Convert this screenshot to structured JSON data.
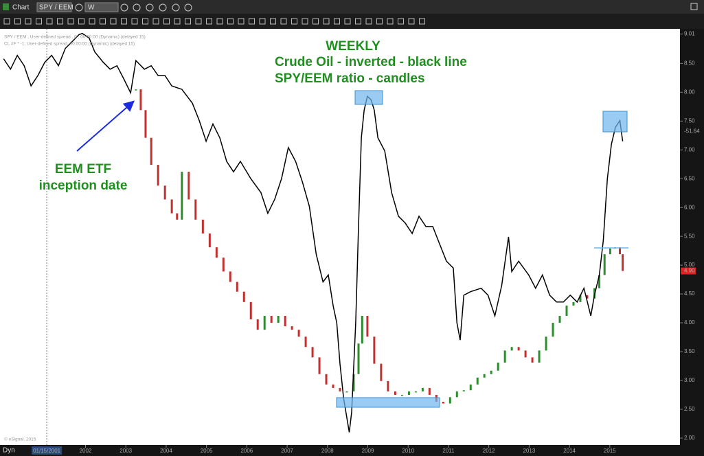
{
  "window_title": "Chart",
  "symbol": "SPY / EEM",
  "interval": "W",
  "status": "Dyn",
  "copyright": "© eSignal, 2015",
  "chart_data": {
    "type": "line",
    "annotations": [
      "WEEKLY",
      "Crude Oil - inverted - black line",
      "SPY/EEM ratio - candles",
      "EEM ETF",
      "inception date"
    ],
    "xlim": [
      1999.88,
      2016.74
    ],
    "xticks": [
      2002,
      2003,
      2004,
      2005,
      2006,
      2007,
      2008,
      2009,
      2010,
      2011,
      2012,
      2013,
      2014,
      2015
    ],
    "cursor": {
      "value": 2001.04,
      "label": "01/15/2001"
    },
    "ylim": [
      1.88,
      9.1
    ],
    "yticks": [
      {
        "value": 2,
        "label": "2.00"
      },
      {
        "value": 2.5,
        "label": "2.50"
      },
      {
        "value": 3,
        "label": "3.00"
      },
      {
        "value": 3.5,
        "label": "3.50"
      },
      {
        "value": 4,
        "label": "4.00"
      },
      {
        "value": 4.5,
        "label": "4.50"
      },
      {
        "value": 5,
        "label": "5.00"
      },
      {
        "value": 5.5,
        "label": "5.50"
      },
      {
        "value": 6,
        "label": "6.00"
      },
      {
        "value": 6.5,
        "label": "6.50"
      },
      {
        "value": 7,
        "label": "7.00"
      },
      {
        "value": 7.5,
        "label": "7.50"
      },
      {
        "value": 8,
        "label": "8.00"
      },
      {
        "value": 8.5,
        "label": "8.50"
      },
      {
        "value": 9.01,
        "label": "9.01"
      }
    ],
    "price_markers": [
      {
        "value": 7.32,
        "label": "-51.64",
        "color": "#ffffff"
      },
      {
        "value": 4.9,
        "label": "4.90",
        "color": "#d22"
      }
    ],
    "series": [
      {
        "name": "CL #F * -1, User-defined spread, 00:00:00 (Dynamic) (delayed 15)",
        "color": "#000000",
        "style": "line",
        "x": [
          1999.97,
          2000.14,
          2000.31,
          2000.48,
          2000.65,
          2000.82,
          2000.99,
          2001.16,
          2001.33,
          2001.5,
          2001.67,
          2001.84,
          2001.92,
          2002.09,
          2002.23,
          2002.44,
          2002.61,
          2002.78,
          2002.95,
          2003.12,
          2003.25,
          2003.46,
          2003.63,
          2003.8,
          2003.97,
          2004.14,
          2004.39,
          2004.65,
          2004.82,
          2004.99,
          2005.16,
          2005.33,
          2005.5,
          2005.67,
          2005.84,
          2006.1,
          2006.35,
          2006.52,
          2006.69,
          2006.86,
          2007.03,
          2007.21,
          2007.38,
          2007.55,
          2007.72,
          2007.89,
          2008.02,
          2008.14,
          2008.23,
          2008.31,
          2008.4,
          2008.54,
          2008.6,
          2008.7,
          2008.77,
          2008.84,
          2008.91,
          2008.99,
          2009.08,
          2009.16,
          2009.25,
          2009.42,
          2009.59,
          2009.76,
          2009.93,
          2010.1,
          2010.27,
          2010.44,
          2010.61,
          2010.78,
          2010.95,
          2011.12,
          2011.21,
          2011.29,
          2011.38,
          2011.55,
          2011.81,
          2011.98,
          2012.15,
          2012.32,
          2012.49,
          2012.57,
          2012.74,
          2012.99,
          2013.16,
          2013.33,
          2013.51,
          2013.68,
          2013.85,
          2014.02,
          2014.19,
          2014.36,
          2014.53,
          2014.62,
          2014.74,
          2014.84,
          2014.94,
          2015.04,
          2015.14,
          2015.25,
          2015.32
        ],
        "values": [
          8.58,
          8.4,
          8.64,
          8.46,
          8.11,
          8.29,
          8.52,
          8.64,
          8.46,
          8.76,
          8.88,
          9.0,
          9.02,
          8.94,
          8.7,
          8.52,
          8.4,
          8.46,
          8.23,
          7.99,
          8.55,
          8.4,
          8.46,
          8.29,
          8.29,
          8.11,
          8.05,
          7.81,
          7.51,
          7.15,
          7.45,
          7.21,
          6.8,
          6.62,
          6.8,
          6.5,
          6.26,
          5.9,
          6.14,
          6.5,
          7.04,
          6.8,
          6.44,
          6.02,
          5.19,
          4.71,
          4.83,
          4.3,
          4.0,
          3.29,
          2.69,
          2.1,
          2.45,
          4.0,
          5.67,
          7.21,
          7.69,
          7.93,
          7.87,
          7.69,
          7.21,
          6.98,
          6.26,
          5.85,
          5.73,
          5.55,
          5.85,
          5.67,
          5.67,
          5.37,
          5.07,
          4.95,
          4.0,
          3.7,
          4.48,
          4.54,
          4.6,
          4.48,
          4.12,
          4.65,
          5.49,
          4.89,
          5.07,
          4.83,
          4.6,
          4.83,
          4.48,
          4.36,
          4.36,
          4.48,
          4.36,
          4.6,
          4.12,
          4.48,
          4.83,
          5.43,
          6.5,
          7.1,
          7.39,
          7.51,
          7.15
        ]
      },
      {
        "name": "SPY / EEM , User-defined spread , 0 , 00:00:00 (Dynamic) (delayed 15)",
        "style": "candles",
        "up_color": "#2e8b2e",
        "down_color": "#c0302e",
        "x": [
          2003.25,
          2003.37,
          2003.49,
          2003.63,
          2003.8,
          2003.97,
          2004.14,
          2004.27,
          2004.39,
          2004.56,
          2004.73,
          2004.91,
          2005.08,
          2005.25,
          2005.42,
          2005.59,
          2005.76,
          2005.93,
          2006.1,
          2006.27,
          2006.44,
          2006.61,
          2006.78,
          2006.95,
          2007.12,
          2007.29,
          2007.46,
          2007.63,
          2007.8,
          2007.97,
          2008.14,
          2008.31,
          2008.48,
          2008.65,
          2008.77,
          2008.86,
          2008.99,
          2009.16,
          2009.33,
          2009.5,
          2009.68,
          2009.85,
          2010.02,
          2010.19,
          2010.36,
          2010.53,
          2010.7,
          2010.87,
          2011.04,
          2011.21,
          2011.38,
          2011.55,
          2011.72,
          2011.89,
          2012.06,
          2012.23,
          2012.4,
          2012.57,
          2012.74,
          2012.91,
          2013.08,
          2013.25,
          2013.42,
          2013.59,
          2013.76,
          2013.93,
          2014.1,
          2014.27,
          2014.44,
          2014.62,
          2014.74,
          2014.87,
          2015.01,
          2015.13,
          2015.25,
          2015.32
        ],
        "values": [
          8.05,
          7.69,
          7.21,
          6.74,
          6.38,
          6.14,
          5.9,
          5.79,
          6.62,
          6.14,
          5.79,
          5.55,
          5.31,
          5.13,
          4.89,
          4.71,
          4.54,
          4.36,
          4.06,
          3.88,
          4.12,
          4.0,
          4.12,
          3.94,
          3.88,
          3.76,
          3.58,
          3.4,
          3.11,
          2.93,
          2.87,
          2.81,
          2.81,
          3.11,
          3.64,
          4.12,
          3.76,
          3.29,
          2.99,
          2.81,
          2.75,
          2.75,
          2.81,
          2.81,
          2.87,
          2.75,
          2.63,
          2.6,
          2.71,
          2.81,
          2.83,
          2.93,
          3.05,
          3.11,
          3.17,
          3.31,
          3.52,
          3.58,
          3.52,
          3.4,
          3.31,
          3.52,
          3.76,
          4.0,
          4.12,
          4.3,
          4.36,
          4.48,
          4.42,
          4.6,
          4.83,
          5.19,
          5.29,
          5.31,
          5.19,
          4.9
        ]
      }
    ]
  }
}
